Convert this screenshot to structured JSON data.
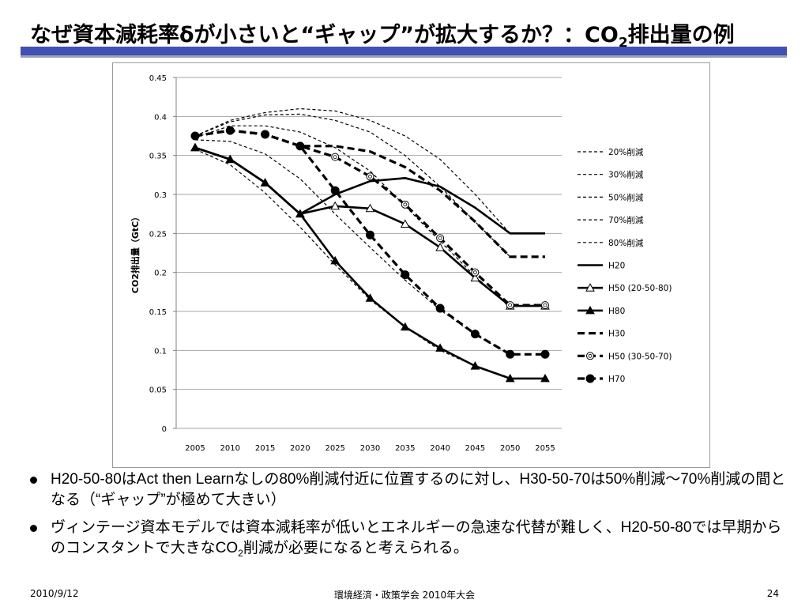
{
  "slide": {
    "title_main": "なぜ資本減耗率δが小さいと“ギャップ”が拡大するか？：CO",
    "title_sub": "2",
    "title_tail": "排出量の例",
    "bullets": [
      {
        "text": "H20-50-80はAct then Learnなしの80%削減付近に位置するのに対し、H30-50-70は50%削減～70%削減の間となる（“ギャップ”が極めて大きい）"
      },
      {
        "text_pre": "ヴィンテージ資本モデルでは資本減耗率が低いとエネルギーの急速な代替が難しく、H20-50-80では早期からのコンスタントで大きなCO",
        "text_sub": "2",
        "text_post": "削減が必要になると考えられる。"
      }
    ],
    "footer": {
      "date": "2010/9/12",
      "center": "環境経済・政策学会 2010年大会",
      "page": "24"
    },
    "colors": {
      "title_rule": "#3f51b5",
      "title_rule_shadow": "#9aa0b5",
      "series": "#000000",
      "grid": "#a6a6a6"
    }
  },
  "chart_data": {
    "type": "line",
    "ylabel": "CO2排出量（GtC）",
    "xlabel": "",
    "ylim": [
      0,
      0.45
    ],
    "y_ticks": [
      "0",
      "0.05",
      "0.1",
      "0.15",
      "0.2",
      "0.25",
      "0.3",
      "0.35",
      "0.4",
      "0.45"
    ],
    "x": [
      "2005",
      "2010",
      "2015",
      "2020",
      "2025",
      "2030",
      "2035",
      "2040",
      "2045",
      "2050",
      "2055"
    ],
    "grid": "horizontal",
    "legend_position": "right",
    "series": [
      {
        "name": "20%削減",
        "style": "dashed-thin",
        "marker": "none",
        "values": [
          0.375,
          0.395,
          0.405,
          0.41,
          0.407,
          0.395,
          0.375,
          0.345,
          0.3,
          0.25,
          null
        ]
      },
      {
        "name": "30%削減",
        "style": "dashed-thin",
        "marker": "none",
        "values": [
          0.375,
          0.393,
          0.402,
          0.403,
          0.395,
          0.38,
          0.35,
          0.31,
          0.265,
          0.22,
          null
        ]
      },
      {
        "name": "50%削減",
        "style": "dashed-thin",
        "marker": "none",
        "values": [
          0.373,
          0.388,
          0.388,
          0.38,
          0.36,
          0.33,
          0.285,
          0.24,
          0.195,
          0.155,
          null
        ]
      },
      {
        "name": "70%削減",
        "style": "dashed-thin",
        "marker": "none",
        "values": [
          0.37,
          0.368,
          0.352,
          0.32,
          0.275,
          0.232,
          0.19,
          0.152,
          0.12,
          0.095,
          null
        ]
      },
      {
        "name": "80%削減",
        "style": "dashed-thin",
        "marker": "none",
        "values": [
          0.358,
          0.338,
          0.302,
          0.258,
          0.21,
          0.165,
          0.13,
          0.1,
          0.08,
          0.065,
          null
        ]
      },
      {
        "name": "H20",
        "style": "solid",
        "marker": "none",
        "values": [
          0.36,
          0.345,
          0.315,
          0.275,
          0.3,
          0.317,
          0.321,
          0.31,
          0.283,
          0.25,
          0.25
        ]
      },
      {
        "name": "H50 (20-50-80)",
        "style": "solid",
        "marker": "triangle-open",
        "values": [
          0.36,
          0.345,
          0.315,
          0.275,
          0.285,
          0.282,
          0.262,
          0.232,
          0.193,
          0.157,
          0.157
        ]
      },
      {
        "name": "H80",
        "style": "solid",
        "marker": "triangle-filled",
        "values": [
          0.36,
          0.345,
          0.315,
          0.275,
          0.215,
          0.167,
          0.13,
          0.103,
          0.08,
          0.064,
          0.064
        ]
      },
      {
        "name": "H30",
        "style": "dashed-thick",
        "marker": "none",
        "values": [
          0.375,
          0.382,
          0.377,
          0.362,
          0.362,
          0.355,
          0.335,
          0.305,
          0.265,
          0.22,
          0.22
        ]
      },
      {
        "name": "H50 (30-50-70)",
        "style": "dashed-thick",
        "marker": "circle-open",
        "values": [
          0.375,
          0.382,
          0.377,
          0.362,
          0.348,
          0.323,
          0.287,
          0.244,
          0.2,
          0.158,
          0.158
        ]
      },
      {
        "name": "H70",
        "style": "dashed-thick",
        "marker": "circle-filled",
        "values": [
          0.375,
          0.382,
          0.377,
          0.362,
          0.305,
          0.248,
          0.197,
          0.154,
          0.121,
          0.095,
          0.095
        ]
      }
    ]
  }
}
